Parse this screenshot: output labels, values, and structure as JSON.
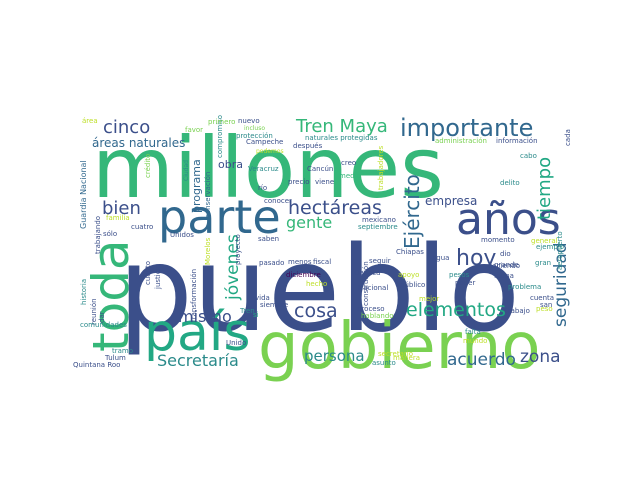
{
  "colors": {
    "background": "#ffffff",
    "navy": "#3b4f8a",
    "blue": "#31688e",
    "teal": "#2a8a8a",
    "green": "#22a884",
    "light_green": "#35b779",
    "lime": "#7ad151",
    "yellow": "#bddf26",
    "purple": "#482878",
    "dark_purple": "#440154"
  },
  "words": [
    {
      "text": "pueblo",
      "color": "navy"
    },
    {
      "text": "millones",
      "color": "light_green"
    },
    {
      "text": "gobierno",
      "color": "lime"
    },
    {
      "text": "país",
      "color": "green"
    },
    {
      "text": "toda",
      "color": "light_green"
    },
    {
      "text": "parte",
      "color": "blue"
    },
    {
      "text": "años",
      "color": "navy"
    },
    {
      "text": "importante",
      "color": "blue"
    },
    {
      "text": "Tren Maya",
      "color": "light_green"
    },
    {
      "text": "cinco",
      "color": "navy"
    },
    {
      "text": "áreas naturales",
      "color": "blue"
    },
    {
      "text": "bien",
      "color": "navy"
    },
    {
      "text": "hectáreas",
      "color": "navy"
    },
    {
      "text": "gente",
      "color": "light_green"
    },
    {
      "text": "Ejército",
      "color": "blue"
    },
    {
      "text": "hoy",
      "color": "navy"
    },
    {
      "text": "tiempo",
      "color": "green"
    },
    {
      "text": "seguridad",
      "color": "blue"
    },
    {
      "text": "elementos",
      "color": "green"
    },
    {
      "text": "cosa",
      "color": "navy"
    },
    {
      "text": "mismo",
      "color": "navy"
    },
    {
      "text": "jóvenes",
      "color": "green"
    },
    {
      "text": "persona",
      "color": "teal"
    },
    {
      "text": "acuerdo",
      "color": "blue"
    },
    {
      "text": "zona",
      "color": "navy"
    },
    {
      "text": "Secretaría",
      "color": "teal"
    },
    {
      "text": "empresa",
      "color": "navy"
    },
    {
      "text": "programa",
      "color": "blue"
    },
    {
      "text": "obra",
      "color": "navy"
    },
    {
      "text": "Guardia Nacional",
      "color": "blue"
    },
    {
      "text": "crédito",
      "color": "lime"
    },
    {
      "text": "Ciudad",
      "color": "teal"
    },
    {
      "text": "conservación",
      "color": "blue"
    },
    {
      "text": "compromiso",
      "color": "teal"
    },
    {
      "text": "Campeche",
      "color": "navy"
    },
    {
      "text": "Veracruz",
      "color": "teal"
    },
    {
      "text": "río",
      "color": "navy"
    },
    {
      "text": "protección",
      "color": "teal"
    },
    {
      "text": "podemos",
      "color": "yellow"
    },
    {
      "text": "incluso",
      "color": "lime"
    },
    {
      "text": "nuevo",
      "color": "navy"
    },
    {
      "text": "favor",
      "color": "lime"
    },
    {
      "text": "primero",
      "color": "lime"
    },
    {
      "text": "área",
      "color": "yellow"
    },
    {
      "text": "Cancún",
      "color": "navy"
    },
    {
      "text": "creo",
      "color": "navy"
    },
    {
      "text": "medio",
      "color": "light_green"
    },
    {
      "text": "viene",
      "color": "navy"
    },
    {
      "text": "precio",
      "color": "navy"
    },
    {
      "text": "después",
      "color": "navy"
    },
    {
      "text": "naturales protegidas",
      "color": "teal"
    },
    {
      "text": "administración",
      "color": "lime"
    },
    {
      "text": "información",
      "color": "navy"
    },
    {
      "text": "cabo",
      "color": "teal"
    },
    {
      "text": "delito",
      "color": "teal"
    },
    {
      "text": "cada",
      "color": "navy"
    },
    {
      "text": "aeropuerto",
      "color": "teal"
    },
    {
      "text": "trabajadores",
      "color": "yellow"
    },
    {
      "text": "trabajando",
      "color": "navy"
    },
    {
      "text": "familia",
      "color": "yellow"
    },
    {
      "text": "sólo",
      "color": "navy"
    },
    {
      "text": "cuatro",
      "color": "navy"
    },
    {
      "text": "Unidos",
      "color": "navy"
    },
    {
      "text": "menos",
      "color": "navy"
    },
    {
      "text": "fiscal",
      "color": "navy"
    },
    {
      "text": "mexicano",
      "color": "navy"
    },
    {
      "text": "septiembre",
      "color": "teal"
    },
    {
      "text": "Nacional",
      "color": "navy"
    },
    {
      "text": "conocer",
      "color": "navy"
    },
    {
      "text": "saben",
      "color": "navy"
    },
    {
      "text": "proyecto",
      "color": "navy"
    },
    {
      "text": "pasado",
      "color": "navy"
    },
    {
      "text": "siempre",
      "color": "navy"
    },
    {
      "text": "vida",
      "color": "navy"
    },
    {
      "text": "si",
      "color": "green"
    },
    {
      "text": "Tren",
      "color": "teal"
    },
    {
      "text": "Unido",
      "color": "navy"
    },
    {
      "text": "Tulum",
      "color": "navy"
    },
    {
      "text": "Quintana Roo",
      "color": "navy"
    },
    {
      "text": "tramo",
      "color": "teal"
    },
    {
      "text": "dar",
      "color": "navy"
    },
    {
      "text": "reunión",
      "color": "navy"
    },
    {
      "text": "historia",
      "color": "teal"
    },
    {
      "text": "comunidades",
      "color": "teal"
    },
    {
      "text": "cuanto",
      "color": "navy"
    },
    {
      "text": "justicia",
      "color": "navy"
    },
    {
      "text": "transformación",
      "color": "navy"
    },
    {
      "text": "Morelos",
      "color": "yellow"
    },
    {
      "text": "diciembre",
      "color": "dark_purple"
    },
    {
      "text": "hecho",
      "color": "yellow"
    },
    {
      "text": "Oaxaca",
      "color": "navy"
    },
    {
      "text": "construcción",
      "color": "navy"
    },
    {
      "text": "apoyo",
      "color": "yellow"
    },
    {
      "text": "público",
      "color": "navy"
    },
    {
      "text": "seguir",
      "color": "navy"
    },
    {
      "text": "proceso",
      "color": "navy"
    },
    {
      "text": "hablando",
      "color": "lime"
    },
    {
      "text": "secretario",
      "color": "yellow"
    },
    {
      "text": "manera",
      "color": "yellow"
    },
    {
      "text": "asunto",
      "color": "teal"
    },
    {
      "text": "Chiapas",
      "color": "navy"
    },
    {
      "text": "agua",
      "color": "navy"
    },
    {
      "text": "mejor",
      "color": "yellow"
    },
    {
      "text": "pesos",
      "color": "teal"
    },
    {
      "text": "poder",
      "color": "navy"
    },
    {
      "text": "fauna",
      "color": "navy"
    },
    {
      "text": "momento",
      "color": "navy"
    },
    {
      "text": "haciendo",
      "color": "navy"
    },
    {
      "text": "dio",
      "color": "navy"
    },
    {
      "text": "grande",
      "color": "navy"
    },
    {
      "text": "gran",
      "color": "teal"
    },
    {
      "text": "general",
      "color": "yellow"
    },
    {
      "text": "ejemplo",
      "color": "teal"
    },
    {
      "text": "problema",
      "color": "teal"
    },
    {
      "text": "cuenta",
      "color": "navy"
    },
    {
      "text": "san",
      "color": "navy"
    },
    {
      "text": "peso",
      "color": "yellow"
    },
    {
      "text": "trabajo",
      "color": "navy"
    },
    {
      "text": "falta",
      "color": "teal"
    },
    {
      "text": "mundo",
      "color": "yellow"
    }
  ]
}
